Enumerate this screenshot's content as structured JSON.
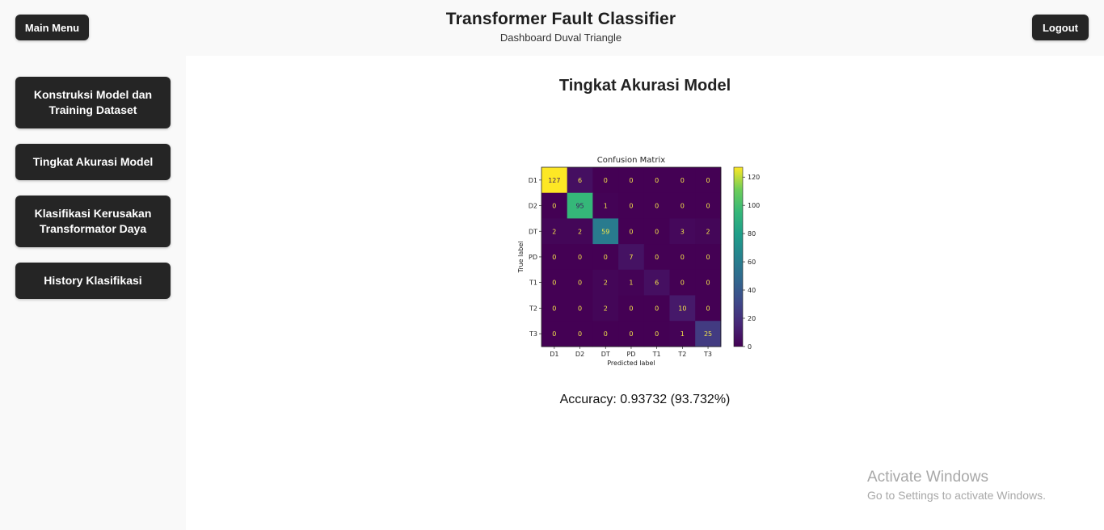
{
  "header": {
    "main_menu_label": "Main Menu",
    "title": "Transformer Fault Classifier",
    "subtitle": "Dashboard Duval Triangle",
    "logout_label": "Logout"
  },
  "sidebar": {
    "items": [
      {
        "label": "Konstruksi Model dan Training Dataset"
      },
      {
        "label": "Tingkat Akurasi Model"
      },
      {
        "label": "Klasifikasi Kerusakan Transformator Daya"
      },
      {
        "label": "History Klasifikasi"
      }
    ]
  },
  "main": {
    "title": "Tingkat Akurasi Model",
    "accuracy_text": "Accuracy: 0.93732 (93.732%)"
  },
  "chart_data": {
    "type": "heatmap",
    "title": "Confusion Matrix",
    "xlabel": "Predicted label",
    "ylabel": "True label",
    "x_categories": [
      "D1",
      "D2",
      "DT",
      "PD",
      "T1",
      "T2",
      "T3"
    ],
    "y_categories": [
      "D1",
      "D2",
      "DT",
      "PD",
      "T1",
      "T2",
      "T3"
    ],
    "values": [
      [
        127,
        6,
        0,
        0,
        0,
        0,
        0
      ],
      [
        0,
        95,
        1,
        0,
        0,
        0,
        0
      ],
      [
        2,
        2,
        59,
        0,
        0,
        3,
        2
      ],
      [
        0,
        0,
        0,
        7,
        0,
        0,
        0
      ],
      [
        0,
        0,
        2,
        1,
        6,
        0,
        0
      ],
      [
        0,
        0,
        2,
        0,
        0,
        10,
        0
      ],
      [
        0,
        0,
        0,
        0,
        0,
        1,
        25
      ]
    ],
    "colorbar_ticks": [
      "0",
      "20",
      "40",
      "60",
      "80",
      "100",
      "120"
    ],
    "colorscale": "viridis",
    "vmin": 0,
    "vmax": 127
  },
  "watermark": {
    "line1": "Activate Windows",
    "line2": "Go to Settings to activate Windows."
  }
}
